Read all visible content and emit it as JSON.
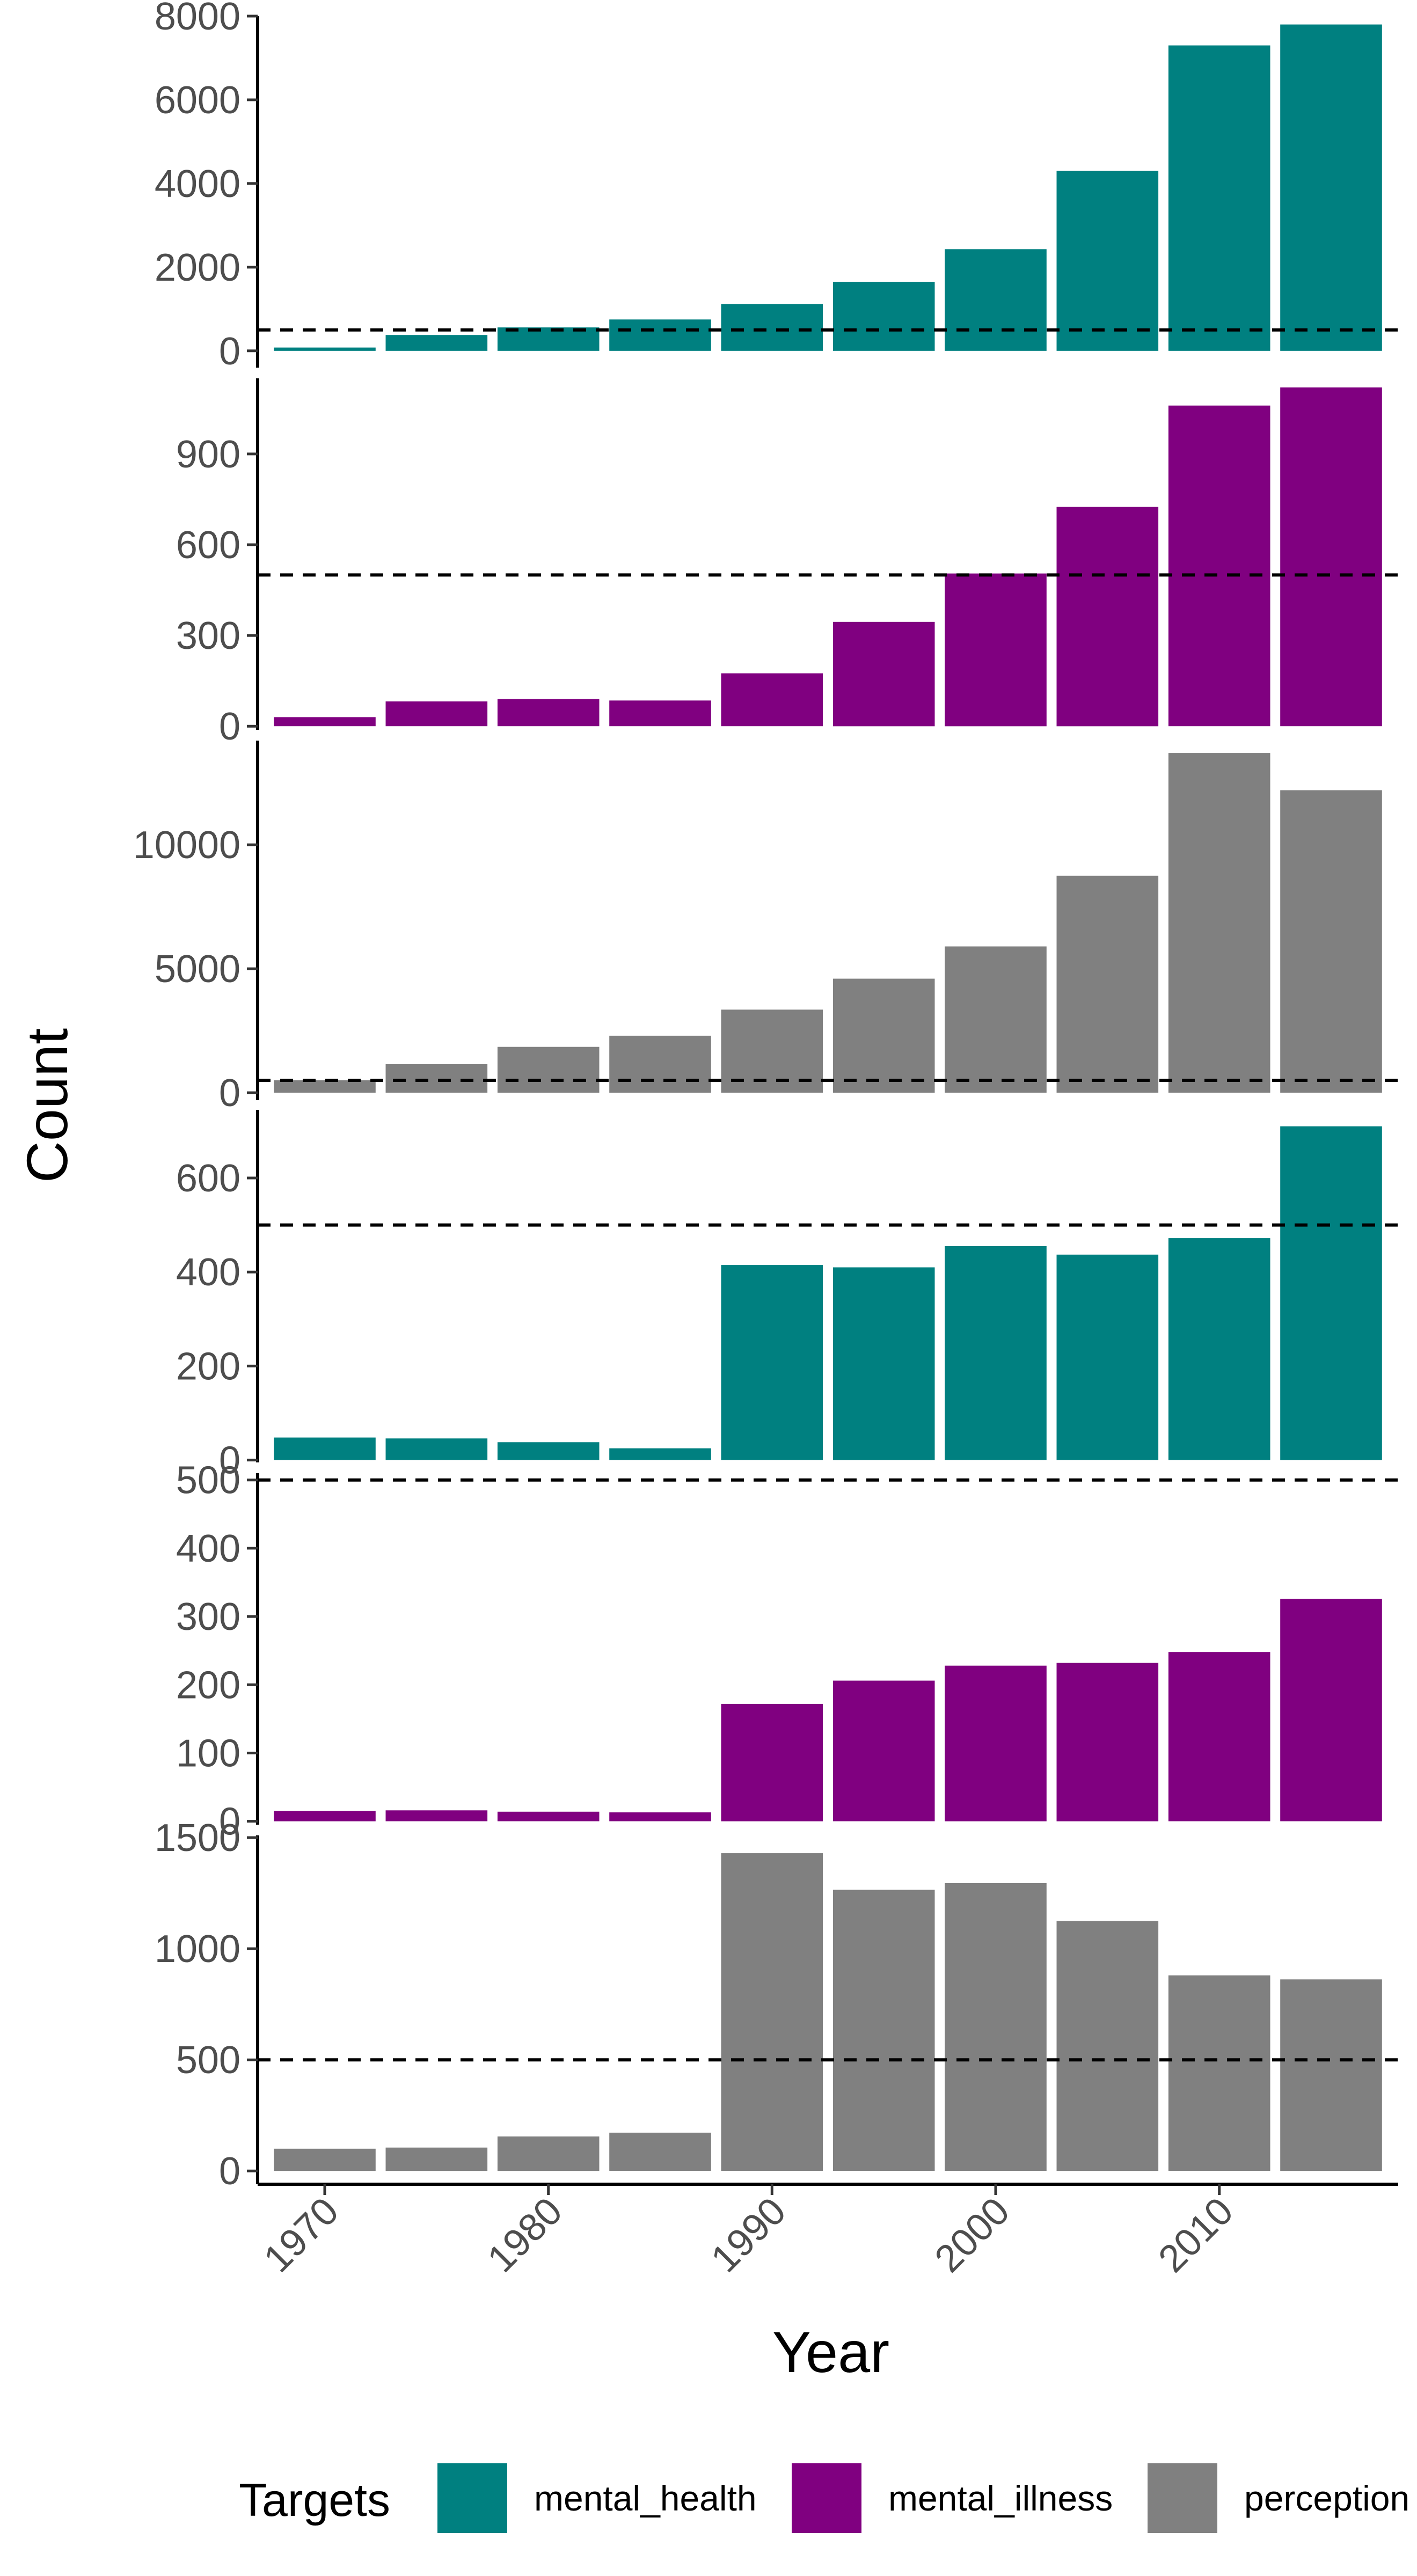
{
  "chart_data": {
    "type": "bar",
    "xlabel": "Year",
    "ylabel": "Count",
    "x_ticks": [
      1970,
      1980,
      1990,
      2000,
      2010
    ],
    "x_tick_labels": [
      "1970",
      "1980",
      "1990",
      "2000",
      "2010"
    ],
    "x_range": [
      1967,
      2018
    ],
    "categories": [
      1970,
      1975,
      1980,
      1985,
      1990,
      1995,
      2000,
      2005,
      2010,
      2015
    ],
    "reference_line": 500,
    "legend": {
      "title": "Targets",
      "position": "bottom",
      "entries": [
        {
          "label": "mental_health",
          "color": "#008080"
        },
        {
          "label": "mental_illness",
          "color": "#800080"
        },
        {
          "label": "perception",
          "color": "#808080"
        }
      ]
    },
    "panels": [
      {
        "series": "mental_health",
        "color": "#008080",
        "ylim": [
          -400,
          8000
        ],
        "y_ticks": [
          0,
          2000,
          4000,
          6000,
          8000
        ],
        "y_tick_labels": [
          "0",
          "2000",
          "4000",
          "6000",
          "8000"
        ],
        "values": [
          80,
          380,
          560,
          750,
          1120,
          1650,
          2430,
          4300,
          7300,
          7800
        ]
      },
      {
        "series": "mental_illness",
        "color": "#800080",
        "ylim": [
          -12,
          1150
        ],
        "y_ticks": [
          0,
          300,
          600,
          900
        ],
        "y_tick_labels": [
          "0",
          "300",
          "600",
          "900"
        ],
        "values": [
          30,
          82,
          90,
          85,
          175,
          345,
          505,
          725,
          1060,
          1120
        ]
      },
      {
        "series": "perception",
        "color": "#808080",
        "ylim": [
          -300,
          14200
        ],
        "y_ticks": [
          0,
          5000,
          10000
        ],
        "y_tick_labels": [
          "0",
          "5000",
          "10000"
        ],
        "values": [
          500,
          1150,
          1850,
          2300,
          3350,
          4600,
          5900,
          8750,
          13700,
          12200
        ]
      },
      {
        "series": "mental_health",
        "color": "#008080",
        "ylim": [
          -5,
          745
        ],
        "y_ticks": [
          0,
          200,
          400,
          600
        ],
        "y_tick_labels": [
          "0",
          "200",
          "400",
          "600"
        ],
        "values": [
          48,
          46,
          38,
          25,
          415,
          410,
          455,
          437,
          472,
          710
        ]
      },
      {
        "series": "mental_illness",
        "color": "#800080",
        "ylim": [
          -5,
          510
        ],
        "y_ticks": [
          0,
          100,
          200,
          300,
          400,
          500
        ],
        "y_tick_labels": [
          "0",
          "100",
          "200",
          "300",
          "400",
          "500"
        ],
        "values": [
          15,
          16,
          14,
          13,
          172,
          206,
          228,
          232,
          248,
          326
        ]
      },
      {
        "series": "perception",
        "color": "#808080",
        "ylim": [
          -60,
          1510
        ],
        "y_ticks": [
          0,
          500,
          1000,
          1500
        ],
        "y_tick_labels": [
          "0",
          "500",
          "1000",
          "1500"
        ],
        "values": [
          100,
          105,
          155,
          172,
          1430,
          1265,
          1295,
          1125,
          880,
          862
        ]
      }
    ]
  }
}
